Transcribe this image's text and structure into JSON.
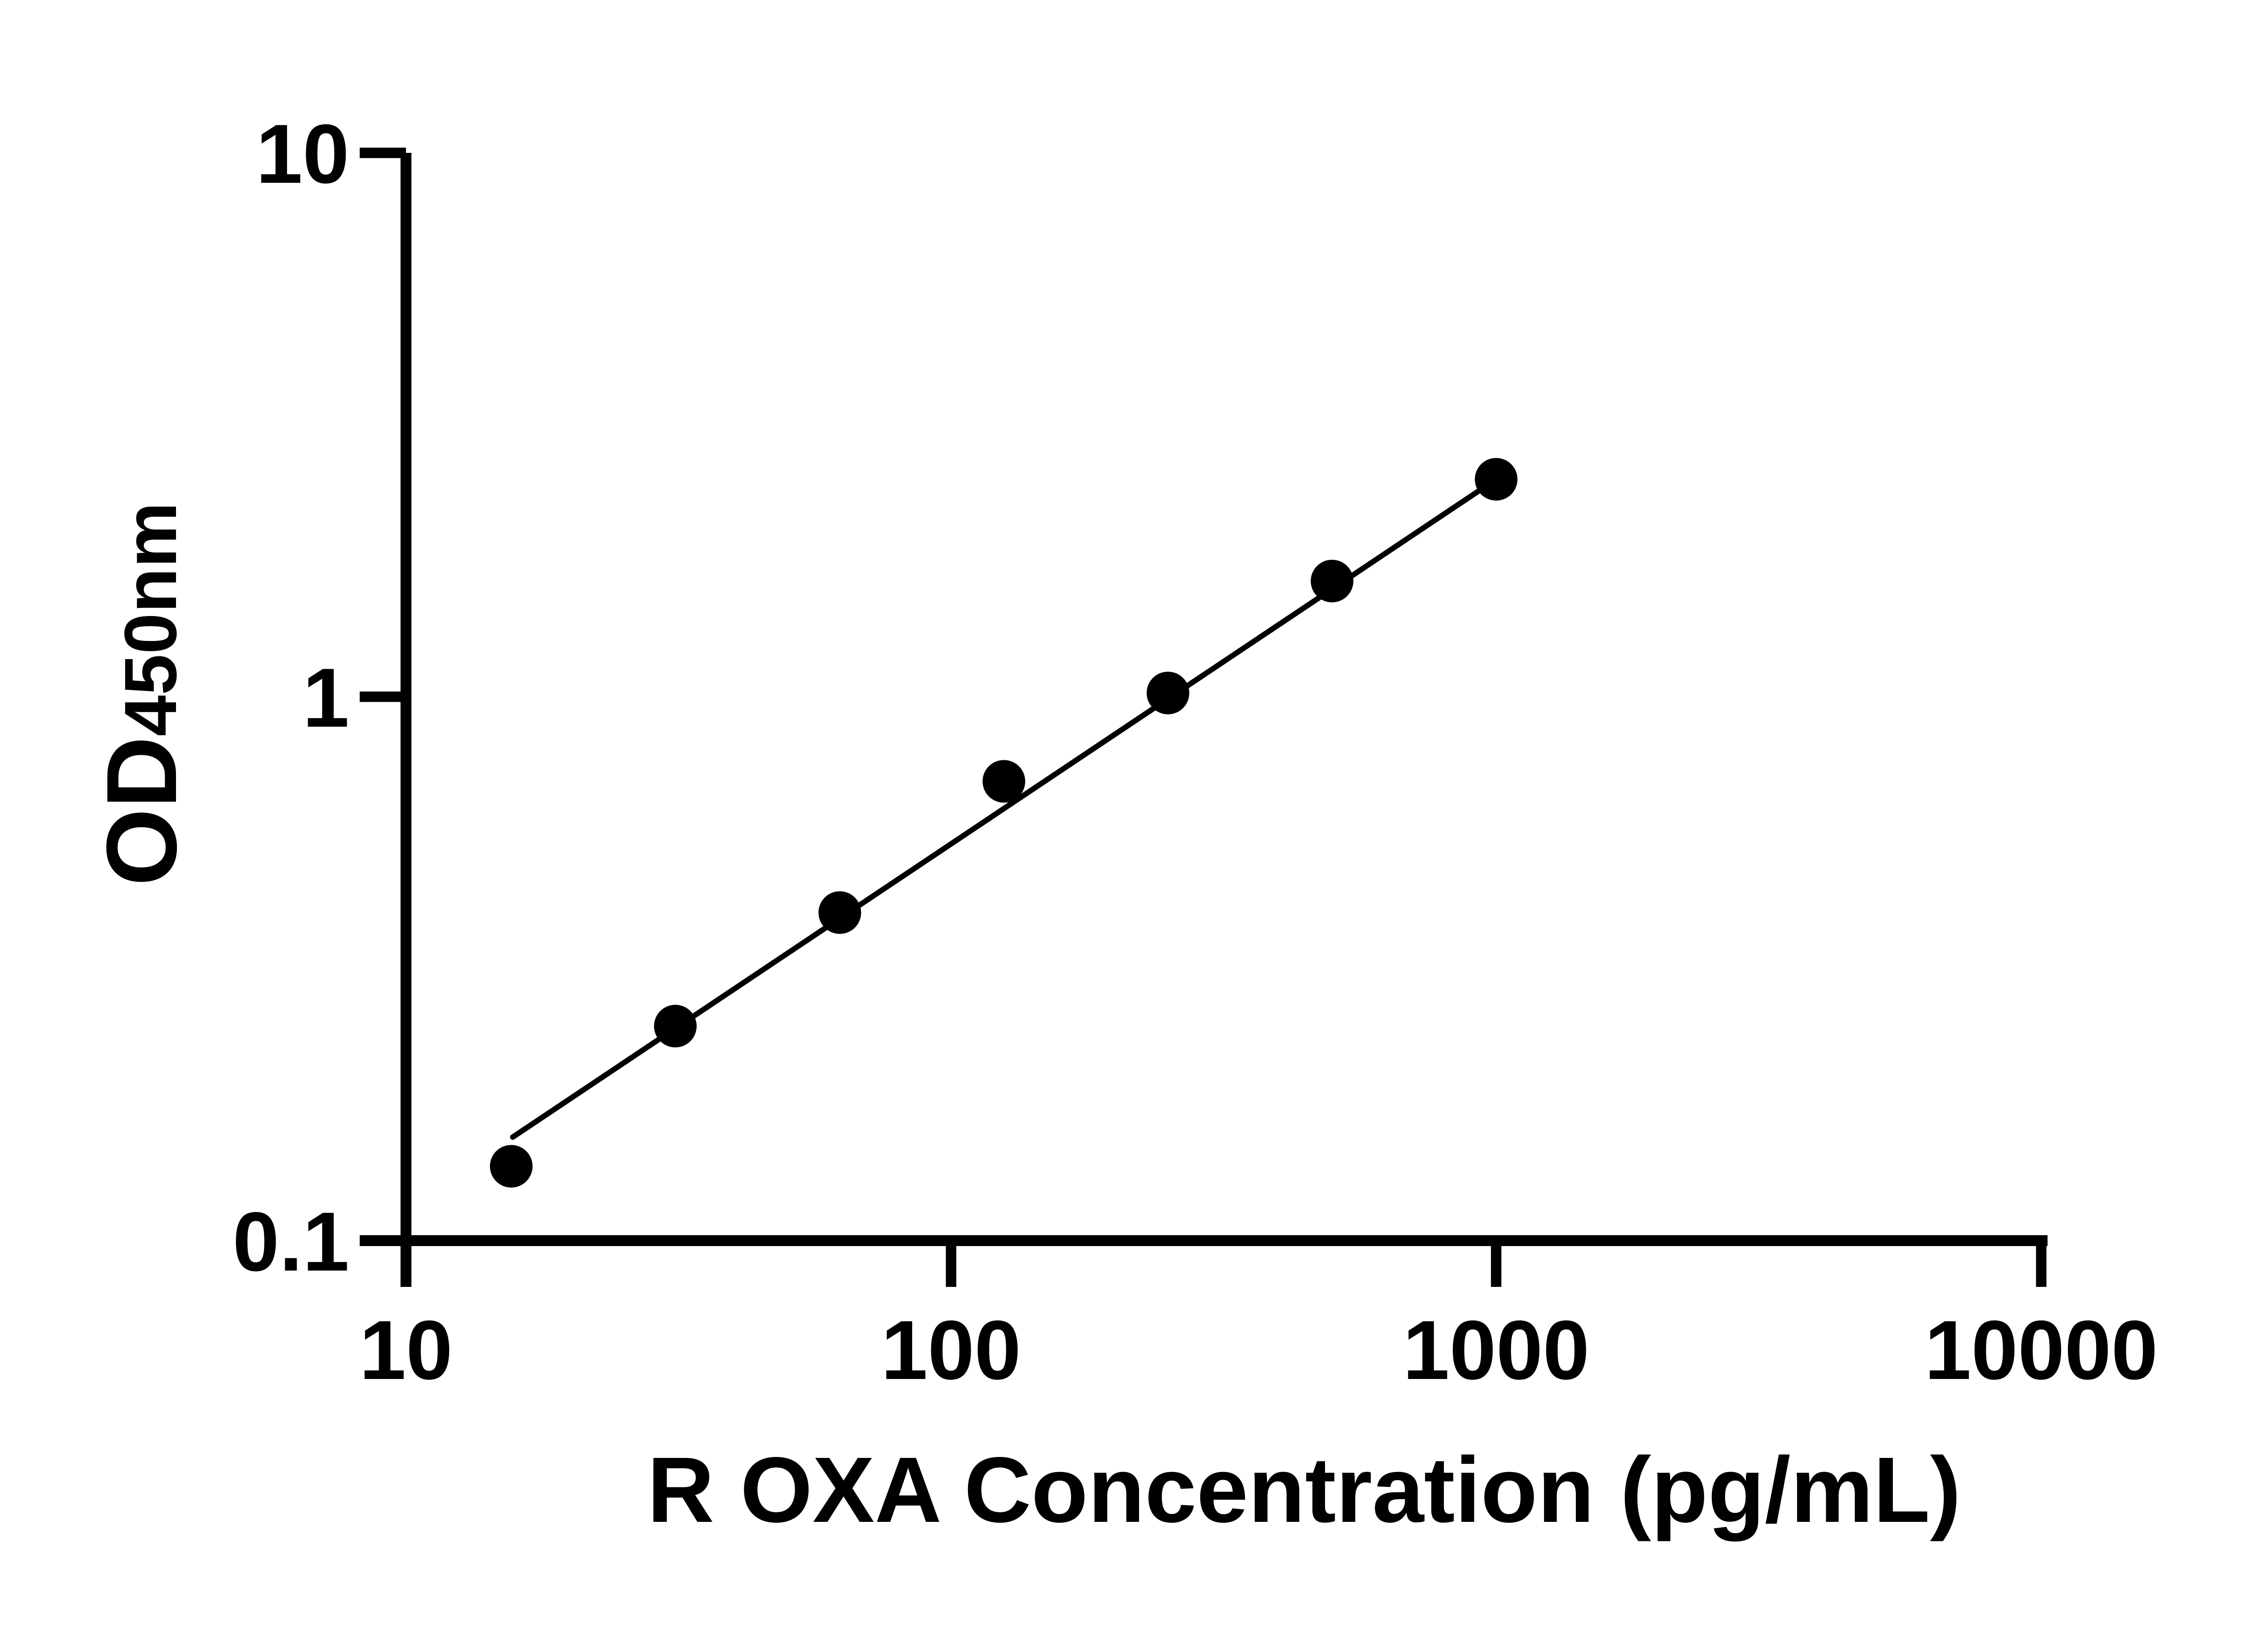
{
  "figure": {
    "background_color": "#ffffff",
    "ink_color": "#000000"
  },
  "chart_data": {
    "type": "scatter",
    "subtype": "log-log standard curve with fitted line",
    "title": "",
    "xlabel": "R OXA Concentration (pg/mL)",
    "ylabel_main": "OD",
    "ylabel_sub": "450nm",
    "x_scale": "log",
    "y_scale": "log",
    "xlim": [
      10,
      10000
    ],
    "ylim": [
      0.1,
      10
    ],
    "grid": false,
    "legend": null,
    "x_ticks": [
      {
        "value": 10,
        "label": "10"
      },
      {
        "value": 100,
        "label": "100"
      },
      {
        "value": 1000,
        "label": "1000"
      },
      {
        "value": 10000,
        "label": "10000"
      }
    ],
    "y_ticks": [
      {
        "value": 0.1,
        "label": "0.1"
      },
      {
        "value": 1,
        "label": "1"
      },
      {
        "value": 10,
        "label": "10"
      }
    ],
    "series": [
      {
        "name": "standard-curve-points",
        "marker": "filled-circle",
        "color": "#000000",
        "points": [
          {
            "x": 15.6,
            "y": 0.137
          },
          {
            "x": 31.2,
            "y": 0.248
          },
          {
            "x": 62.5,
            "y": 0.401
          },
          {
            "x": 125,
            "y": 0.699
          },
          {
            "x": 250,
            "y": 1.016
          },
          {
            "x": 500,
            "y": 1.632
          },
          {
            "x": 1000,
            "y": 2.511
          }
        ]
      }
    ],
    "fit_line": {
      "color": "#000000",
      "x1": 15.7,
      "y1": 0.155,
      "x2": 1000,
      "y2": 2.511
    }
  }
}
